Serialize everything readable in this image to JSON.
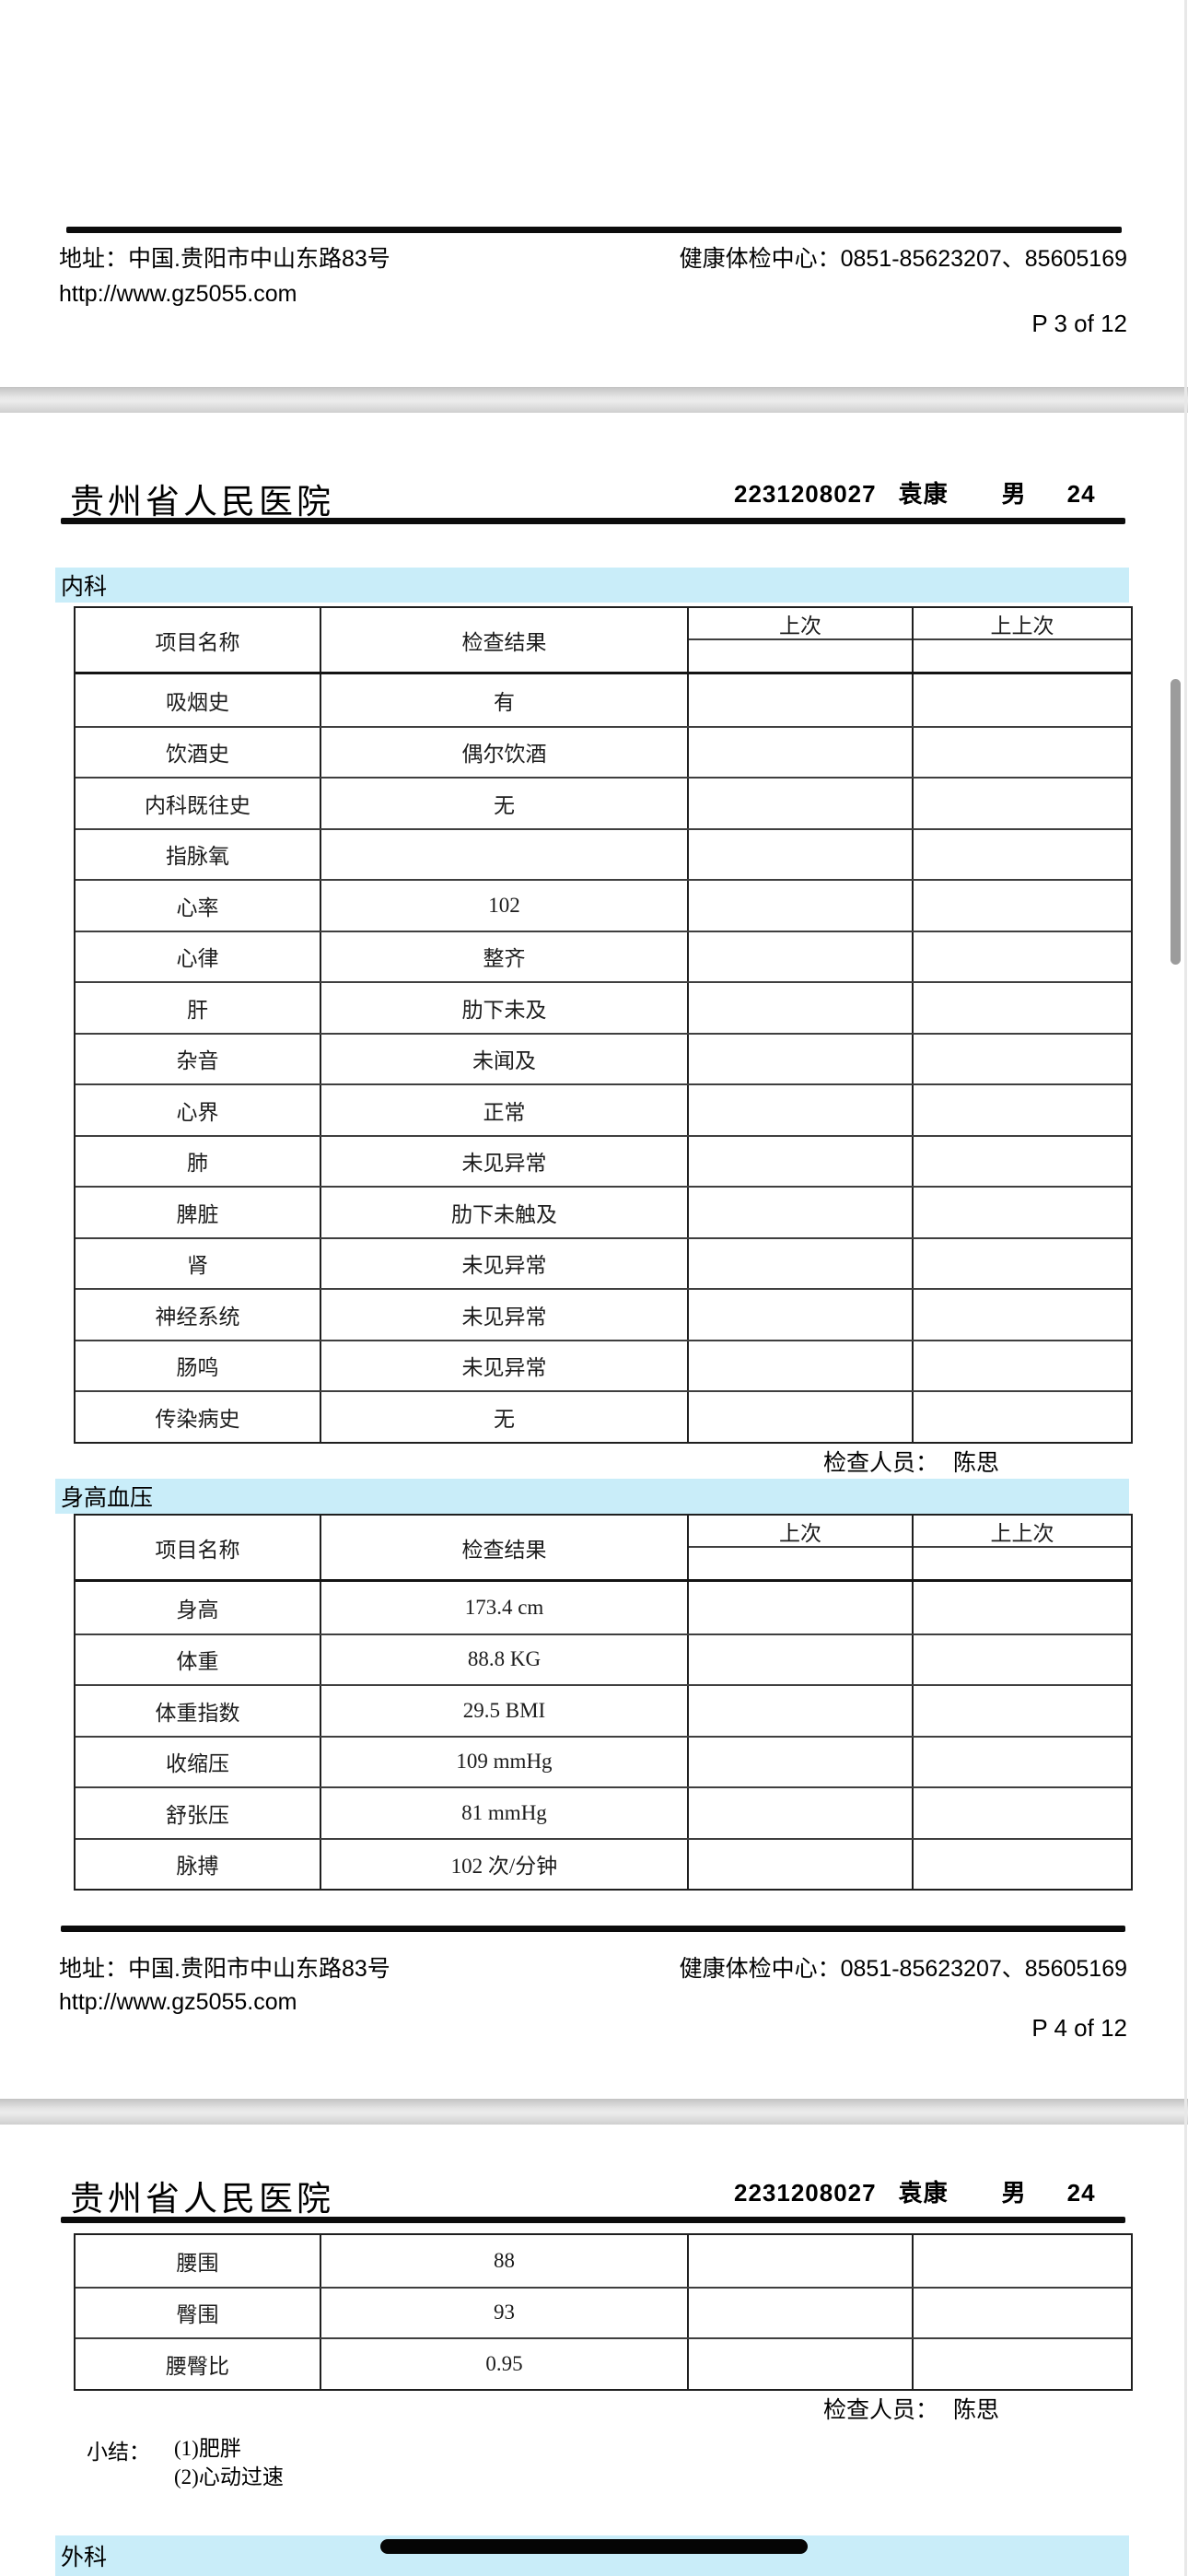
{
  "colors": {
    "section_bar": "#c9edf9",
    "scrollbar": "#9c9c9c",
    "home_indicator": "#050505"
  },
  "page3": {
    "footer": {
      "address": "地址：中国.贵阳市中山东路83号",
      "phone": "健康体检中心：0851-85623207、85605169",
      "website": "http://www.gz5055.com",
      "page_number": "P 3 of 12"
    }
  },
  "page4": {
    "hospital": "贵州省人民医院",
    "patient": {
      "id": "2231208027",
      "name": "袁康",
      "gender": "男",
      "age": "24"
    },
    "internal_medicine": {
      "title": "内科",
      "headers": [
        "项目名称",
        "检查结果",
        "上次",
        "上上次"
      ],
      "rows": [
        [
          "吸烟史",
          "有"
        ],
        [
          "饮酒史",
          "偶尔饮酒"
        ],
        [
          "内科既往史",
          "无"
        ],
        [
          "指脉氧",
          ""
        ],
        [
          "心率",
          "102"
        ],
        [
          "心律",
          "整齐"
        ],
        [
          "肝",
          "肋下未及"
        ],
        [
          "杂音",
          "未闻及"
        ],
        [
          "心界",
          "正常"
        ],
        [
          "肺",
          "未见异常"
        ],
        [
          "脾脏",
          "肋下未触及"
        ],
        [
          "肾",
          "未见异常"
        ],
        [
          "神经系统",
          "未见异常"
        ],
        [
          "肠鸣",
          "未见异常"
        ],
        [
          "传染病史",
          "无"
        ]
      ],
      "examiner_label": "检查人员：",
      "examiner_name": "陈思"
    },
    "height_blood_pressure": {
      "title": "身高血压",
      "headers": [
        "项目名称",
        "检查结果",
        "上次",
        "上上次"
      ],
      "rows": [
        [
          "身高",
          "173.4 cm"
        ],
        [
          "体重",
          "88.8 KG"
        ],
        [
          "体重指数",
          "29.5 BMI"
        ],
        [
          "收缩压",
          "109 mmHg"
        ],
        [
          "舒张压",
          "81 mmHg"
        ],
        [
          "脉搏",
          "102 次/分钟"
        ]
      ]
    },
    "footer": {
      "address": "地址：中国.贵阳市中山东路83号",
      "phone": "健康体检中心：0851-85623207、85605169",
      "website": "http://www.gz5055.com",
      "page_number": "P 4 of 12"
    }
  },
  "page5": {
    "hospital": "贵州省人民医院",
    "patient": {
      "id": "2231208027",
      "name": "袁康",
      "gender": "男",
      "age": "24"
    },
    "body_measurements": {
      "rows": [
        [
          "腰围",
          "88"
        ],
        [
          "臀围",
          "93"
        ],
        [
          "腰臀比",
          "0.95"
        ]
      ],
      "examiner_label": "检查人员：",
      "examiner_name": "陈思"
    },
    "summary": {
      "label": "小结：",
      "items": [
        "(1)肥胖",
        "(2)心动过速"
      ]
    },
    "next_section": {
      "title": "外科"
    }
  }
}
